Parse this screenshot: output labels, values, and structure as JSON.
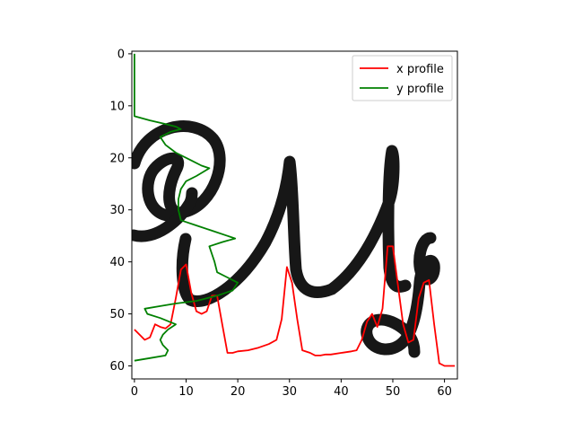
{
  "chart_data": {
    "type": "line",
    "title": "",
    "xlabel": "",
    "ylabel": "",
    "xlim": [
      -0.5,
      62.5
    ],
    "ylim": [
      62.5,
      -0.5
    ],
    "y_inverted": true,
    "grid": false,
    "legend_placement": "top-right",
    "background_image": "grayscale handwritten word 'Mg' (black strokes on white, 63x63 px image)",
    "xticks": [
      0,
      10,
      20,
      30,
      40,
      50,
      60
    ],
    "yticks": [
      0,
      10,
      20,
      30,
      40,
      50,
      60
    ],
    "series": [
      {
        "name": "x profile",
        "color": "#ff0000",
        "points": [
          [
            0,
            53
          ],
          [
            2,
            55
          ],
          [
            3,
            54.5
          ],
          [
            4,
            52
          ],
          [
            5,
            52.5
          ],
          [
            6,
            52.8
          ],
          [
            7,
            52
          ],
          [
            8,
            47
          ],
          [
            9,
            41.5
          ],
          [
            10,
            40.5
          ],
          [
            11,
            46
          ],
          [
            12,
            49.5
          ],
          [
            13,
            50
          ],
          [
            14,
            49.5
          ],
          [
            15,
            46.5
          ],
          [
            16,
            46.5
          ],
          [
            17,
            52
          ],
          [
            18,
            57.5
          ],
          [
            19,
            57.5
          ],
          [
            20,
            57.2
          ],
          [
            22,
            57
          ],
          [
            24,
            56.5
          ],
          [
            26,
            55.8
          ],
          [
            27.5,
            55
          ],
          [
            28.5,
            51
          ],
          [
            29.5,
            41
          ],
          [
            30.5,
            44
          ],
          [
            31.5,
            51
          ],
          [
            32.5,
            57
          ],
          [
            34,
            57.5
          ],
          [
            35,
            58
          ],
          [
            36,
            58
          ],
          [
            37,
            57.8
          ],
          [
            38,
            57.8
          ],
          [
            40,
            57.5
          ],
          [
            42,
            57.2
          ],
          [
            43,
            57
          ],
          [
            44,
            55
          ],
          [
            45,
            51.5
          ],
          [
            46,
            50
          ],
          [
            47,
            52.5
          ],
          [
            48,
            49
          ],
          [
            49,
            37
          ],
          [
            50,
            37
          ],
          [
            51,
            44.5
          ],
          [
            52,
            52
          ],
          [
            53,
            55.5
          ],
          [
            54,
            55
          ],
          [
            55,
            47
          ],
          [
            56,
            44
          ],
          [
            57,
            43.5
          ],
          [
            58,
            52
          ],
          [
            59,
            59.5
          ],
          [
            60,
            60
          ],
          [
            62,
            60
          ]
        ]
      },
      {
        "name": "y profile",
        "color": "#008000",
        "points": [
          [
            0,
            0
          ],
          [
            0,
            5
          ],
          [
            0,
            12
          ],
          [
            3,
            12.8
          ],
          [
            6,
            13.5
          ],
          [
            8,
            14
          ],
          [
            9,
            14.5
          ],
          [
            7,
            15
          ],
          [
            5,
            16
          ],
          [
            6,
            17.5
          ],
          [
            8,
            19
          ],
          [
            11,
            20.5
          ],
          [
            13,
            21.5
          ],
          [
            14.5,
            22
          ],
          [
            12,
            23.5
          ],
          [
            10,
            24.5
          ],
          [
            9,
            26
          ],
          [
            8.5,
            28
          ],
          [
            8.5,
            30
          ],
          [
            9,
            32
          ],
          [
            12,
            33
          ],
          [
            15,
            34
          ],
          [
            18,
            35
          ],
          [
            19.5,
            35.5
          ],
          [
            17,
            36.2
          ],
          [
            14.5,
            37
          ],
          [
            15,
            38.5
          ],
          [
            15.5,
            40
          ],
          [
            16,
            42
          ],
          [
            18,
            43
          ],
          [
            20,
            44
          ],
          [
            19,
            45.5
          ],
          [
            16,
            46.5
          ],
          [
            12,
            47.5
          ],
          [
            8,
            48
          ],
          [
            5,
            48.5
          ],
          [
            2,
            49
          ],
          [
            2.5,
            50
          ],
          [
            5,
            50.8
          ],
          [
            8,
            52
          ],
          [
            6.5,
            53
          ],
          [
            5.5,
            54
          ],
          [
            5,
            55
          ],
          [
            5.5,
            56
          ],
          [
            6.5,
            57
          ],
          [
            6,
            58
          ],
          [
            3,
            58.5
          ],
          [
            0,
            59
          ]
        ]
      }
    ]
  }
}
